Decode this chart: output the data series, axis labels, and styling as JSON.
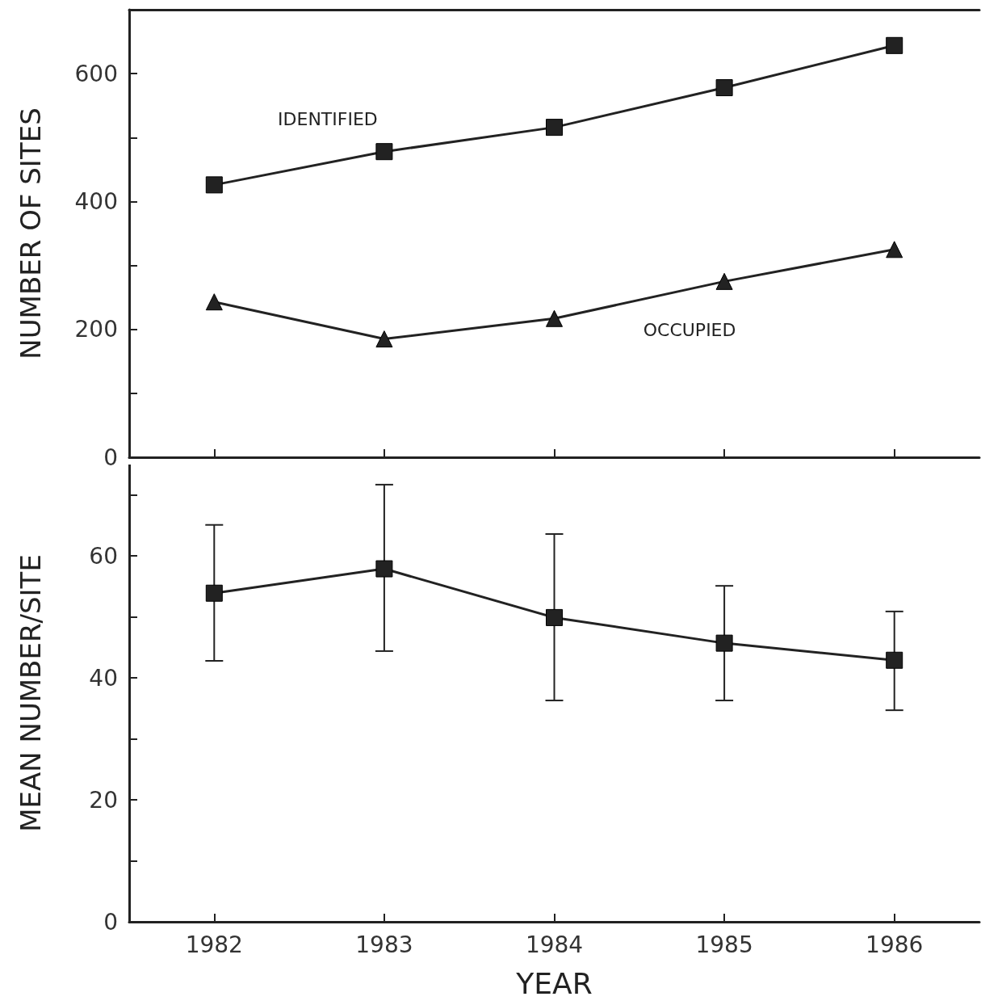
{
  "chart_data": [
    {
      "type": "line",
      "ylabel": "NUMBER OF SITES",
      "x": [
        1982,
        1983,
        1984,
        1985,
        1986
      ],
      "xlim": [
        1981.5,
        1986.5
      ],
      "xticks": [
        1982,
        1983,
        1984,
        1985,
        1986
      ],
      "ylim": [
        0,
        700
      ],
      "yticks": [
        0,
        {
          "value": 100,
          "label": null
        },
        200,
        {
          "value": 300,
          "label": null
        },
        400,
        {
          "value": 500,
          "label": null
        },
        600,
        {
          "value": 700,
          "label": null
        }
      ],
      "tick_labels": "y",
      "grid": false,
      "legend": false,
      "line_style": "solid",
      "series": [
        {
          "name": "IDENTIFIED",
          "color": "#222222",
          "marker": "square",
          "values": [
            426,
            478,
            516,
            578,
            644
          ]
        },
        {
          "name": "OCCUPIED",
          "color": "#222222",
          "marker": "triangle",
          "values": [
            243,
            185,
            217,
            275,
            325
          ]
        }
      ]
    },
    {
      "type": "line",
      "xlabel": "YEAR",
      "ylabel": "MEAN NUMBER/SITE",
      "x": [
        1982,
        1983,
        1984,
        1985,
        1986
      ],
      "xlim": [
        1981.5,
        1986.5
      ],
      "xticks": [
        1982,
        1983,
        1984,
        1985,
        1986
      ],
      "ylim": [
        0,
        75
      ],
      "yticks": [
        0,
        {
          "value": 10,
          "label": null
        },
        20,
        {
          "value": 30,
          "label": null
        },
        40,
        {
          "value": 50,
          "label": null
        },
        60,
        {
          "value": 70,
          "label": null
        }
      ],
      "grid": false,
      "legend": false,
      "line_style": "solid",
      "series": [
        {
          "color": "#222222",
          "marker": "square",
          "values": [
            53.9,
            57.9,
            49.9,
            45.7,
            42.9
          ],
          "errors": [
            [
              42.8,
              65.1
            ],
            [
              44.4,
              71.7
            ],
            [
              36.3,
              63.6
            ],
            [
              36.3,
              55.1
            ],
            [
              34.7,
              50.9
            ]
          ]
        }
      ]
    }
  ]
}
